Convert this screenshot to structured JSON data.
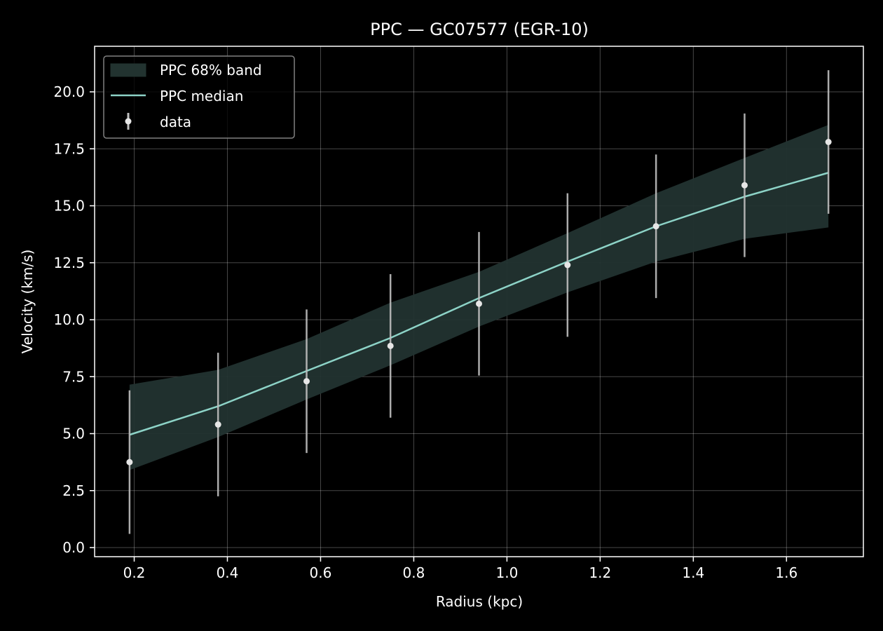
{
  "chart_data": {
    "type": "line",
    "title": "PPC — GC07577 (EGR-10)",
    "xlabel": "Radius (kpc)",
    "ylabel": "Velocity (km/s)",
    "xlim": [
      0.115,
      1.765
    ],
    "ylim": [
      -0.4,
      22.0
    ],
    "xticks": [
      0.2,
      0.4,
      0.6,
      0.8,
      1.0,
      1.2,
      1.4,
      1.6
    ],
    "xtick_labels": [
      "0.2",
      "0.4",
      "0.6",
      "0.8",
      "1.0",
      "1.2",
      "1.4",
      "1.6"
    ],
    "yticks": [
      0.0,
      2.5,
      5.0,
      7.5,
      10.0,
      12.5,
      15.0,
      17.5,
      20.0
    ],
    "ytick_labels": [
      "0.0",
      "2.5",
      "5.0",
      "7.5",
      "10.0",
      "12.5",
      "15.0",
      "17.5",
      "20.0"
    ],
    "grid": true,
    "legend_position": "top-left",
    "colors": {
      "background": "#000000",
      "axes": "#ffffff",
      "grid": "#ffffff",
      "band": "#223330",
      "median": "#8dd3c7",
      "data": "#e6e6e6",
      "errorbar": "#bfbfbf"
    },
    "legend": [
      {
        "label": "PPC 68% band",
        "kind": "band"
      },
      {
        "label": "PPC median",
        "kind": "line"
      },
      {
        "label": "data",
        "kind": "errorbar"
      }
    ],
    "band": {
      "name": "PPC 68% band",
      "x": [
        0.19,
        0.38,
        0.57,
        0.75,
        0.94,
        1.13,
        1.32,
        1.51,
        1.69
      ],
      "lower": [
        3.4,
        4.85,
        6.5,
        8.0,
        9.7,
        11.2,
        12.55,
        13.55,
        14.05
      ],
      "upper": [
        7.15,
        7.8,
        9.15,
        10.75,
        12.1,
        13.8,
        15.55,
        17.1,
        18.55
      ]
    },
    "median": {
      "name": "PPC median",
      "x": [
        0.19,
        0.38,
        0.57,
        0.75,
        0.94,
        1.13,
        1.32,
        1.51,
        1.69
      ],
      "y": [
        4.95,
        6.2,
        7.75,
        9.2,
        10.95,
        12.55,
        14.1,
        15.4,
        16.45
      ]
    },
    "data": {
      "name": "data",
      "x": [
        0.19,
        0.38,
        0.57,
        0.75,
        0.94,
        1.13,
        1.32,
        1.51,
        1.69
      ],
      "y": [
        3.75,
        5.4,
        7.3,
        8.85,
        10.7,
        12.4,
        14.1,
        15.9,
        17.8
      ],
      "yerr": [
        3.15,
        3.15,
        3.15,
        3.15,
        3.15,
        3.15,
        3.15,
        3.15,
        3.15
      ]
    }
  }
}
